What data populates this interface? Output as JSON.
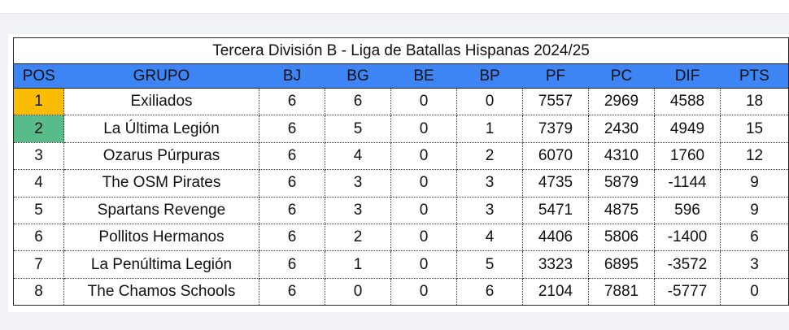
{
  "title": "Tercera División B - Liga de Batallas Hispanas 2024/25",
  "colors": {
    "header_bg": "#3d84f5",
    "first_place": "#fbbc04",
    "second_place": "#57bb8a"
  },
  "columns": [
    "POS",
    "GRUPO",
    "BJ",
    "BG",
    "BE",
    "BP",
    "PF",
    "PC",
    "DIF",
    "PTS"
  ],
  "rows": [
    {
      "pos": "1",
      "grupo": "Exiliados",
      "bj": "6",
      "bg": "6",
      "be": "0",
      "bp": "0",
      "pf": "7557",
      "pc": "2969",
      "dif": "4588",
      "pts": "18"
    },
    {
      "pos": "2",
      "grupo": "La Última Legión",
      "bj": "6",
      "bg": "5",
      "be": "0",
      "bp": "1",
      "pf": "7379",
      "pc": "2430",
      "dif": "4949",
      "pts": "15"
    },
    {
      "pos": "3",
      "grupo": "Ozarus Púrpuras",
      "bj": "6",
      "bg": "4",
      "be": "0",
      "bp": "2",
      "pf": "6070",
      "pc": "4310",
      "dif": "1760",
      "pts": "12"
    },
    {
      "pos": "4",
      "grupo": "The OSM Pirates",
      "bj": "6",
      "bg": "3",
      "be": "0",
      "bp": "3",
      "pf": "4735",
      "pc": "5879",
      "dif": "-1144",
      "pts": "9"
    },
    {
      "pos": "5",
      "grupo": "Spartans Revenge",
      "bj": "6",
      "bg": "3",
      "be": "0",
      "bp": "3",
      "pf": "5471",
      "pc": "4875",
      "dif": "596",
      "pts": "9"
    },
    {
      "pos": "6",
      "grupo": "Pollitos Hermanos",
      "bj": "6",
      "bg": "2",
      "be": "0",
      "bp": "4",
      "pf": "4406",
      "pc": "5806",
      "dif": "-1400",
      "pts": "6"
    },
    {
      "pos": "7",
      "grupo": "La Penúltima Legión",
      "bj": "6",
      "bg": "1",
      "be": "0",
      "bp": "5",
      "pf": "3323",
      "pc": "6895",
      "dif": "-3572",
      "pts": "3"
    },
    {
      "pos": "8",
      "grupo": "The Chamos Schools",
      "bj": "6",
      "bg": "0",
      "be": "0",
      "bp": "6",
      "pf": "2104",
      "pc": "7881",
      "dif": "-5777",
      "pts": "0"
    }
  ]
}
